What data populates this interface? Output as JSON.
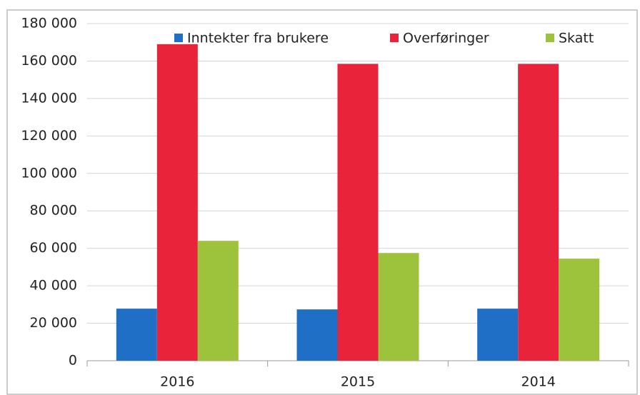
{
  "chart_data": {
    "type": "bar",
    "categories": [
      "2016",
      "2015",
      "2014"
    ],
    "series": [
      {
        "name": "Inntekter fra brukere",
        "color": "#1f6fc6",
        "values": [
          27800,
          27400,
          27800
        ]
      },
      {
        "name": "Overføringer",
        "color": "#e8233a",
        "values": [
          169000,
          158500,
          158500
        ]
      },
      {
        "name": "Skatt",
        "color": "#9dc23c",
        "values": [
          64000,
          57500,
          54500
        ]
      }
    ],
    "ylim": [
      0,
      180000
    ],
    "yticks": [
      0,
      {
        "value": 20000,
        "label": "20 000"
      },
      {
        "value": 40000,
        "label": "40 000"
      },
      {
        "value": 60000,
        "label": "60 000"
      },
      {
        "value": 80000,
        "label": "80 000"
      },
      {
        "value": 100000,
        "label": "100 000"
      },
      {
        "value": 120000,
        "label": "120 000"
      },
      {
        "value": 140000,
        "label": "140 000"
      },
      {
        "value": 160000,
        "label": "160 000"
      },
      {
        "value": 180000,
        "label": "180 000"
      }
    ],
    "grid": true,
    "legend": "top"
  }
}
